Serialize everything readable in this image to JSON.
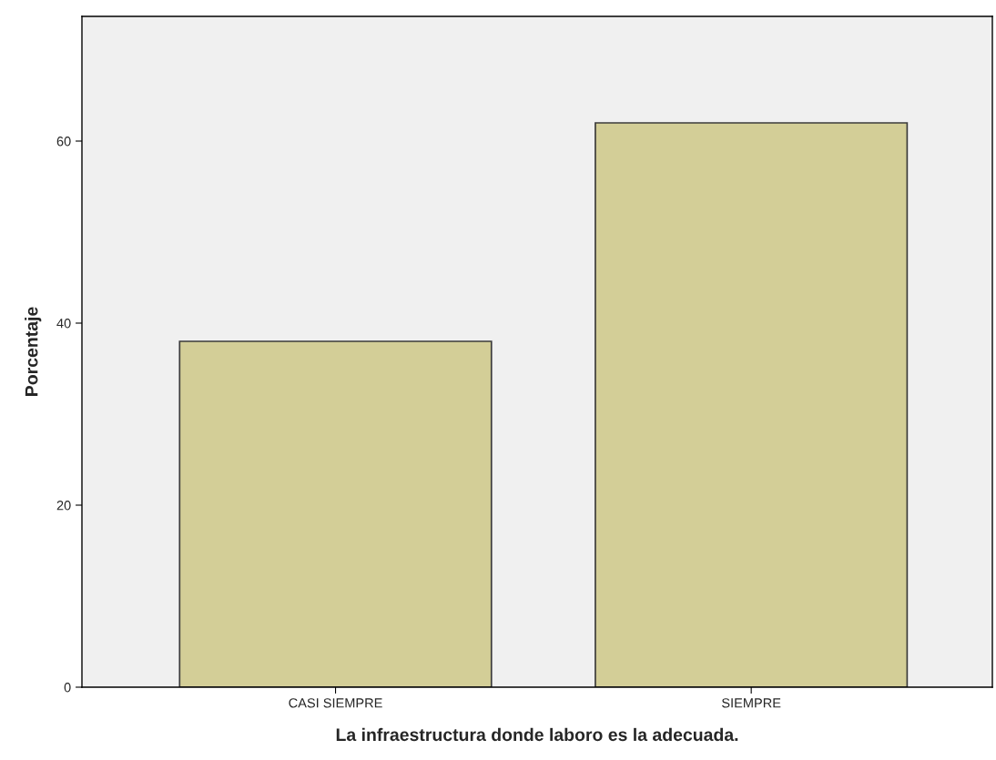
{
  "chart_data": {
    "type": "bar",
    "xlabel": "La infraestructura donde laboro es la adecuada.",
    "ylabel": "Porcentaje",
    "categories": [
      "CASI SIEMPRE",
      "SIEMPRE"
    ],
    "values": [
      38,
      62
    ],
    "color": "#d3ce97",
    "ylim": [
      0,
      73.7
    ],
    "yticks": [
      0,
      20,
      40,
      60
    ],
    "grid": false,
    "legend": false
  }
}
